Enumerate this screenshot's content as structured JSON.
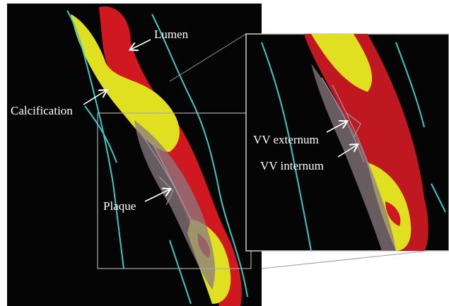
{
  "annotations": [
    "Lumen",
    "Calcification",
    "Plaque",
    "VV externum",
    "VV internum"
  ]
}
